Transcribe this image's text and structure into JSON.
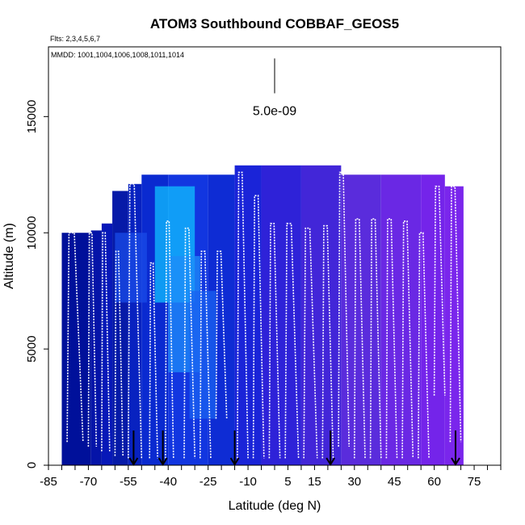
{
  "chart_data": {
    "type": "heatmap",
    "title": "ATOM3 Southbound COBBAF_GEOS5",
    "flights_note": "Flts: 2,3,4,5,6,7",
    "dates_note": "MMDD: 1001,1004,1006,1008,1011,1014",
    "xlabel": "Latitude (deg N)",
    "ylabel": "Altitude (m)",
    "xlim": [
      -85,
      85
    ],
    "ylim": [
      0,
      18000
    ],
    "x_ticks": [
      -85,
      -70,
      -55,
      -40,
      -25,
      -10,
      5,
      15,
      30,
      45,
      60,
      75
    ],
    "x_minor_step": 5,
    "y_ticks": [
      0,
      5000,
      10000,
      15000
    ],
    "scale_label": "5.0e-09",
    "scale_bar_altitude": [
      16000,
      17500
    ],
    "scale_bar_latitude": 0,
    "colors": {
      "deep_blue": "#00109a",
      "blue": "#0718c8",
      "bright_blue": "#1e40f0",
      "cyan": "#10c0ff",
      "violet": "#5a2cd6",
      "purple": "#7a26ec",
      "track": "#ffffff"
    },
    "field_columns": [
      {
        "lat_from": -80,
        "lat_to": -69,
        "top": 10000,
        "color": "#00109a"
      },
      {
        "lat_from": -69,
        "lat_to": -65,
        "top": 10100,
        "color": "#0514a8"
      },
      {
        "lat_from": -65,
        "lat_to": -61,
        "top": 10400,
        "color": "#0718b8"
      },
      {
        "lat_from": -61,
        "lat_to": -55,
        "top": 11800,
        "color": "#061aa8"
      },
      {
        "lat_from": -55,
        "lat_to": -50,
        "top": 12100,
        "color": "#0822c0"
      },
      {
        "lat_from": -50,
        "lat_to": -40,
        "top": 12500,
        "color": "#0a2ad0"
      },
      {
        "lat_from": -40,
        "lat_to": -25,
        "top": 12500,
        "color": "#1236e0"
      },
      {
        "lat_from": -25,
        "lat_to": -15,
        "top": 12500,
        "color": "#0e2cd4"
      },
      {
        "lat_from": -15,
        "lat_to": -5,
        "top": 12900,
        "color": "#1a24d8"
      },
      {
        "lat_from": -5,
        "lat_to": 10,
        "top": 12900,
        "color": "#2e22d8"
      },
      {
        "lat_from": 10,
        "lat_to": 25,
        "top": 12900,
        "color": "#4226d8"
      },
      {
        "lat_from": 25,
        "lat_to": 40,
        "top": 12500,
        "color": "#5a2cdc"
      },
      {
        "lat_from": 40,
        "lat_to": 55,
        "top": 12500,
        "color": "#6a28e4"
      },
      {
        "lat_from": 55,
        "lat_to": 64,
        "top": 12500,
        "color": "#7424ea"
      },
      {
        "lat_from": 64,
        "lat_to": 71,
        "top": 12000,
        "color": "#7a26ec"
      }
    ],
    "highlight_patches": [
      {
        "lat_from": -45,
        "lat_to": -30,
        "alt_from": 7000,
        "alt_to": 12000,
        "color": "#10c0ff"
      },
      {
        "lat_from": -40,
        "lat_to": -28,
        "alt_from": 4000,
        "alt_to": 9000,
        "color": "#1e8cf8"
      },
      {
        "lat_from": -32,
        "lat_to": -22,
        "alt_from": 2000,
        "alt_to": 7500,
        "color": "#1a62f0"
      },
      {
        "lat_from": -60,
        "lat_to": -48,
        "alt_from": 7000,
        "alt_to": 10000,
        "color": "#1a4ce8"
      }
    ],
    "flight_track_profiles": [
      {
        "lat_start": -78,
        "lat_end": -72,
        "alt_top": 10000,
        "alt_bottom": 1000
      },
      {
        "lat_start": -70,
        "lat_end": -67,
        "alt_top": 10000,
        "alt_bottom": 800
      },
      {
        "lat_start": -65,
        "lat_end": -62,
        "alt_top": 10000,
        "alt_bottom": 600
      },
      {
        "lat_start": -60,
        "lat_end": -57,
        "alt_top": 9200,
        "alt_bottom": 400
      },
      {
        "lat_start": -55,
        "lat_end": -50,
        "alt_top": 12100,
        "alt_bottom": 300
      },
      {
        "lat_start": -47,
        "lat_end": -44,
        "alt_top": 8700,
        "alt_bottom": 300
      },
      {
        "lat_start": -41,
        "lat_end": -38,
        "alt_top": 10500,
        "alt_bottom": 300
      },
      {
        "lat_start": -34,
        "lat_end": -30,
        "alt_top": 10200,
        "alt_bottom": 300
      },
      {
        "lat_start": -28,
        "lat_end": -24,
        "alt_top": 9200,
        "alt_bottom": 300
      },
      {
        "lat_start": -22,
        "lat_end": -18,
        "alt_top": 9200,
        "alt_bottom": 2000
      },
      {
        "lat_start": -14,
        "lat_end": -10,
        "alt_top": 12600,
        "alt_bottom": 300
      },
      {
        "lat_start": -8,
        "lat_end": -4,
        "alt_top": 11600,
        "alt_bottom": 300
      },
      {
        "lat_start": -2,
        "lat_end": 2,
        "alt_top": 10400,
        "alt_bottom": 300
      },
      {
        "lat_start": 4,
        "lat_end": 9,
        "alt_top": 10400,
        "alt_bottom": 300
      },
      {
        "lat_start": 11,
        "lat_end": 16,
        "alt_top": 10200,
        "alt_bottom": 300
      },
      {
        "lat_start": 18,
        "lat_end": 22,
        "alt_top": 10300,
        "alt_bottom": 300
      },
      {
        "lat_start": 24,
        "lat_end": 28,
        "alt_top": 12600,
        "alt_bottom": 800
      },
      {
        "lat_start": 30,
        "lat_end": 34,
        "alt_top": 10600,
        "alt_bottom": 300
      },
      {
        "lat_start": 36,
        "lat_end": 40,
        "alt_top": 10600,
        "alt_bottom": 300
      },
      {
        "lat_start": 42,
        "lat_end": 46,
        "alt_top": 10600,
        "alt_bottom": 300
      },
      {
        "lat_start": 48,
        "lat_end": 52,
        "alt_top": 10500,
        "alt_bottom": 300
      },
      {
        "lat_start": 54,
        "lat_end": 58,
        "alt_top": 10000,
        "alt_bottom": 300
      },
      {
        "lat_start": 60,
        "lat_end": 64,
        "alt_top": 12000,
        "alt_bottom": 3000
      },
      {
        "lat_start": 66,
        "lat_end": 70,
        "alt_top": 12000,
        "alt_bottom": 1000
      }
    ],
    "event_arrows": [
      {
        "lat": -53,
        "alt_top": 800
      },
      {
        "lat": -42,
        "alt_top": 800
      },
      {
        "lat": -15,
        "alt_top": 800
      },
      {
        "lat": 21,
        "alt_top": 800
      },
      {
        "lat": 68,
        "alt_top": 800
      }
    ]
  }
}
